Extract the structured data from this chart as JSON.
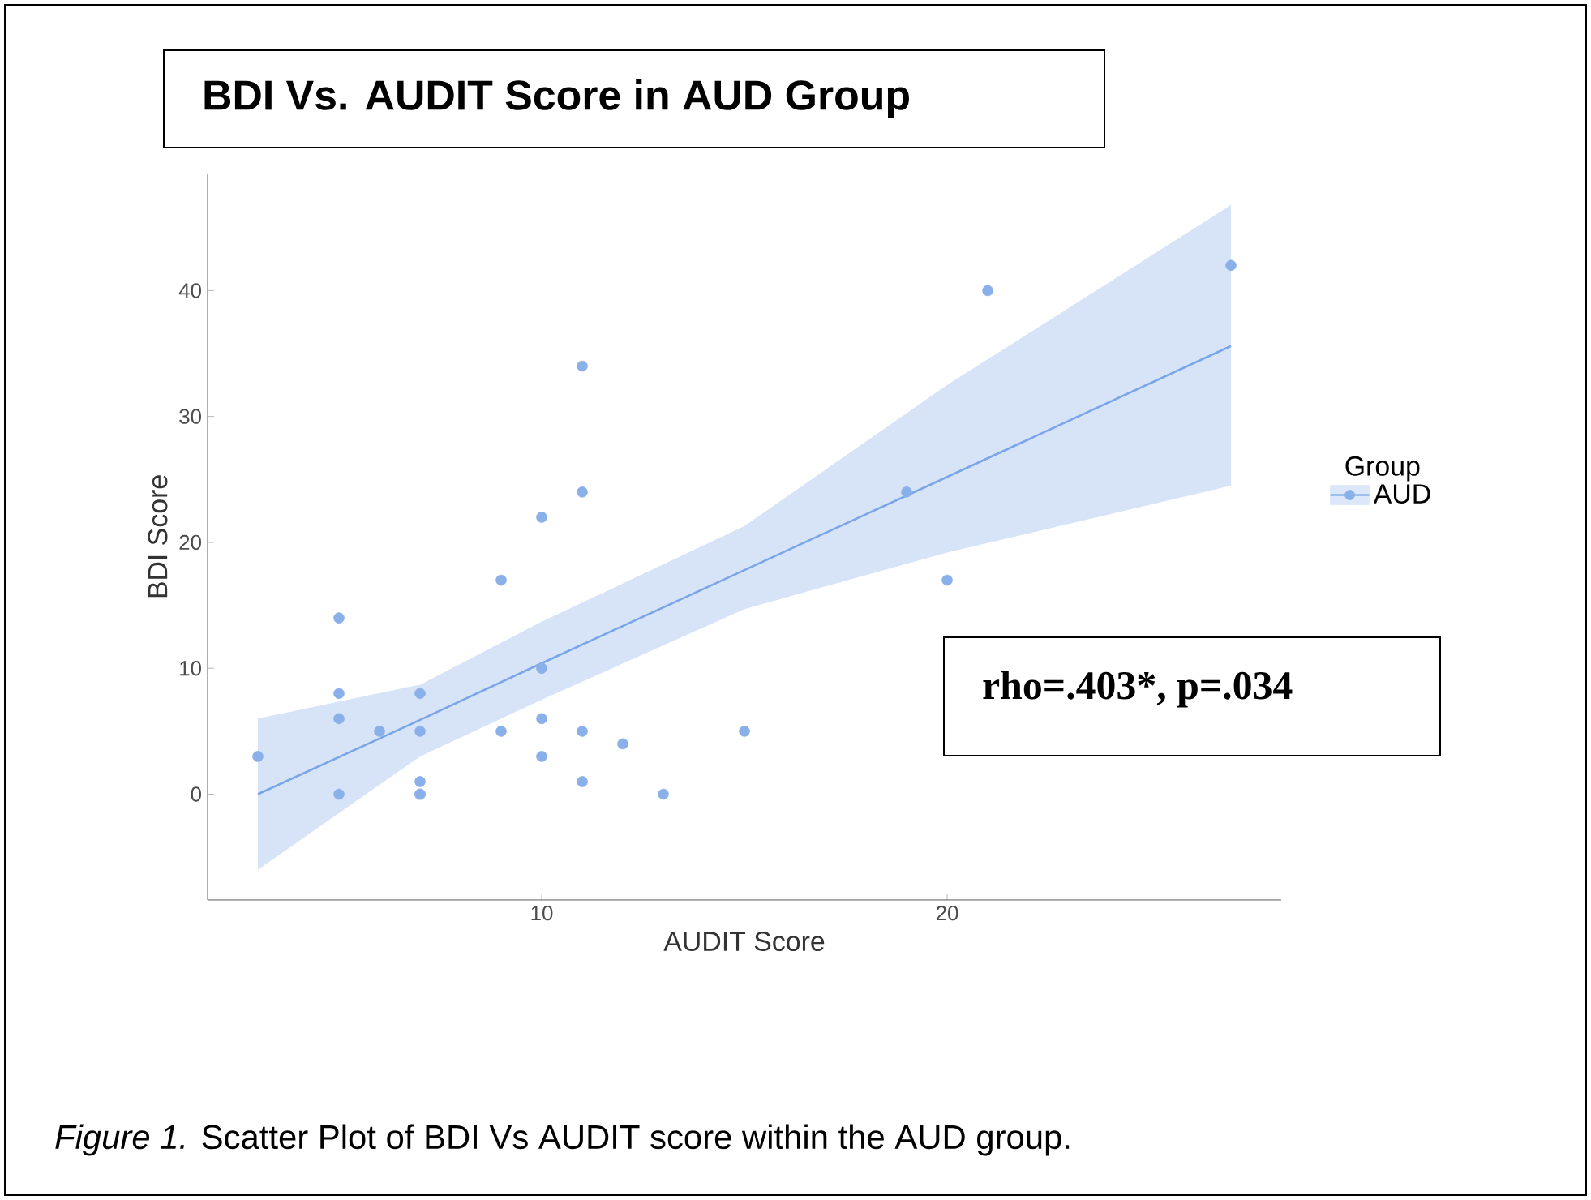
{
  "chart_data": {
    "type": "scatter",
    "title": "BDI Vs. AUDIT Score in AUD Group",
    "xlabel": "AUDIT Score",
    "ylabel": "BDI Score",
    "legend_title": "Group",
    "legend": "right",
    "grid": false,
    "xlim": [
      1.76,
      28.24
    ],
    "ylim": [
      -8.4,
      49.3
    ],
    "xticks": [
      10,
      20
    ],
    "yticks": [
      0,
      10,
      20,
      30,
      40
    ],
    "annotations": [
      "rho=.403*, p=.034",
      "*Figure 1.* Scatter Plot of BDI Vs AUDIT score within the AUD group."
    ],
    "series": [
      {
        "name": "AUD",
        "color": "#8ab0ea",
        "marker": "circle",
        "x": [
          3,
          5,
          5,
          5,
          5,
          6,
          7,
          7,
          7,
          7,
          7,
          9,
          9,
          10,
          10,
          10,
          10,
          11,
          11,
          11,
          11,
          12,
          13,
          15,
          19,
          20,
          21,
          27
        ],
        "values": [
          3,
          14,
          8,
          6,
          0,
          5,
          8,
          5,
          1,
          0,
          0,
          17,
          5,
          22,
          10,
          6,
          3,
          34,
          24,
          5,
          1,
          4,
          0,
          5,
          24,
          17,
          40,
          42
        ]
      },
      {
        "type": "line",
        "color": "#7aa6e8",
        "line_style": "solid",
        "marker": "none",
        "x": [
          3,
          7,
          10,
          15,
          20,
          27
        ],
        "values": [
          0,
          5.9,
          10.4,
          17.8,
          25.2,
          35.6
        ],
        "lower": [
          -6,
          3,
          7.5,
          14.7,
          19.2,
          24.5
        ],
        "upper": [
          6,
          8.7,
          13.7,
          21.3,
          32.5,
          46.8
        ]
      }
    ]
  }
}
